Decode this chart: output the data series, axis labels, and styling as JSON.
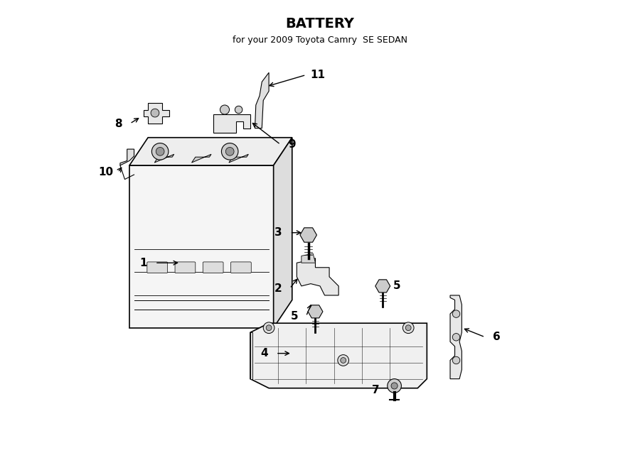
{
  "title": "BATTERY",
  "subtitle": "for your 2009 Toyota Camry  SE SEDAN",
  "background_color": "#ffffff",
  "line_color": "#000000",
  "text_color": "#000000",
  "fig_width": 9.0,
  "fig_height": 6.62
}
